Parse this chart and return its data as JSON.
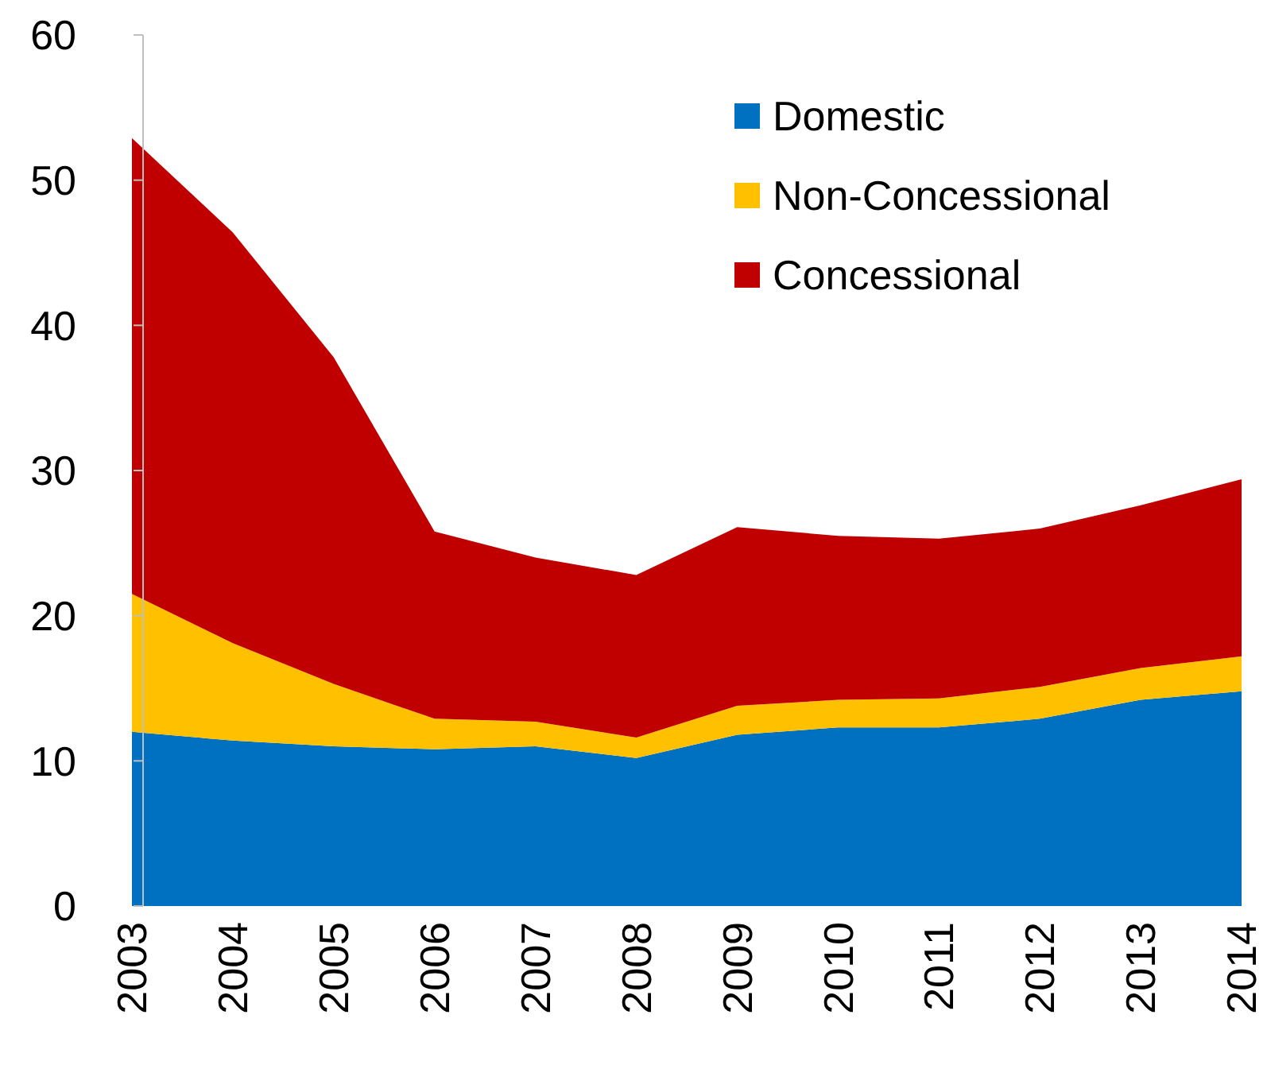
{
  "chart_data": {
    "type": "area",
    "stacked": true,
    "categories": [
      "2003",
      "2004",
      "2005",
      "2006",
      "2007",
      "2008",
      "2009",
      "2010",
      "2011",
      "2012",
      "2013",
      "2014"
    ],
    "series": [
      {
        "name": "Domestic",
        "color": "#0070c0",
        "values": [
          12.0,
          11.4,
          11.0,
          10.8,
          11.0,
          10.2,
          11.8,
          12.3,
          12.3,
          12.9,
          14.2,
          14.8
        ]
      },
      {
        "name": "Non-Concessional",
        "color": "#ffc000",
        "values": [
          9.5,
          6.7,
          4.3,
          2.1,
          1.7,
          1.4,
          2.0,
          1.9,
          2.0,
          2.2,
          2.2,
          2.4
        ]
      },
      {
        "name": "Concessional",
        "color": "#c00000",
        "values": [
          31.4,
          28.3,
          22.5,
          12.9,
          11.3,
          11.2,
          12.3,
          11.3,
          11.0,
          10.9,
          11.2,
          12.2
        ]
      }
    ],
    "ylim": [
      0,
      60
    ],
    "yticks": [
      0,
      10,
      20,
      30,
      40,
      50,
      60
    ],
    "grid": false,
    "legend": "top right"
  }
}
